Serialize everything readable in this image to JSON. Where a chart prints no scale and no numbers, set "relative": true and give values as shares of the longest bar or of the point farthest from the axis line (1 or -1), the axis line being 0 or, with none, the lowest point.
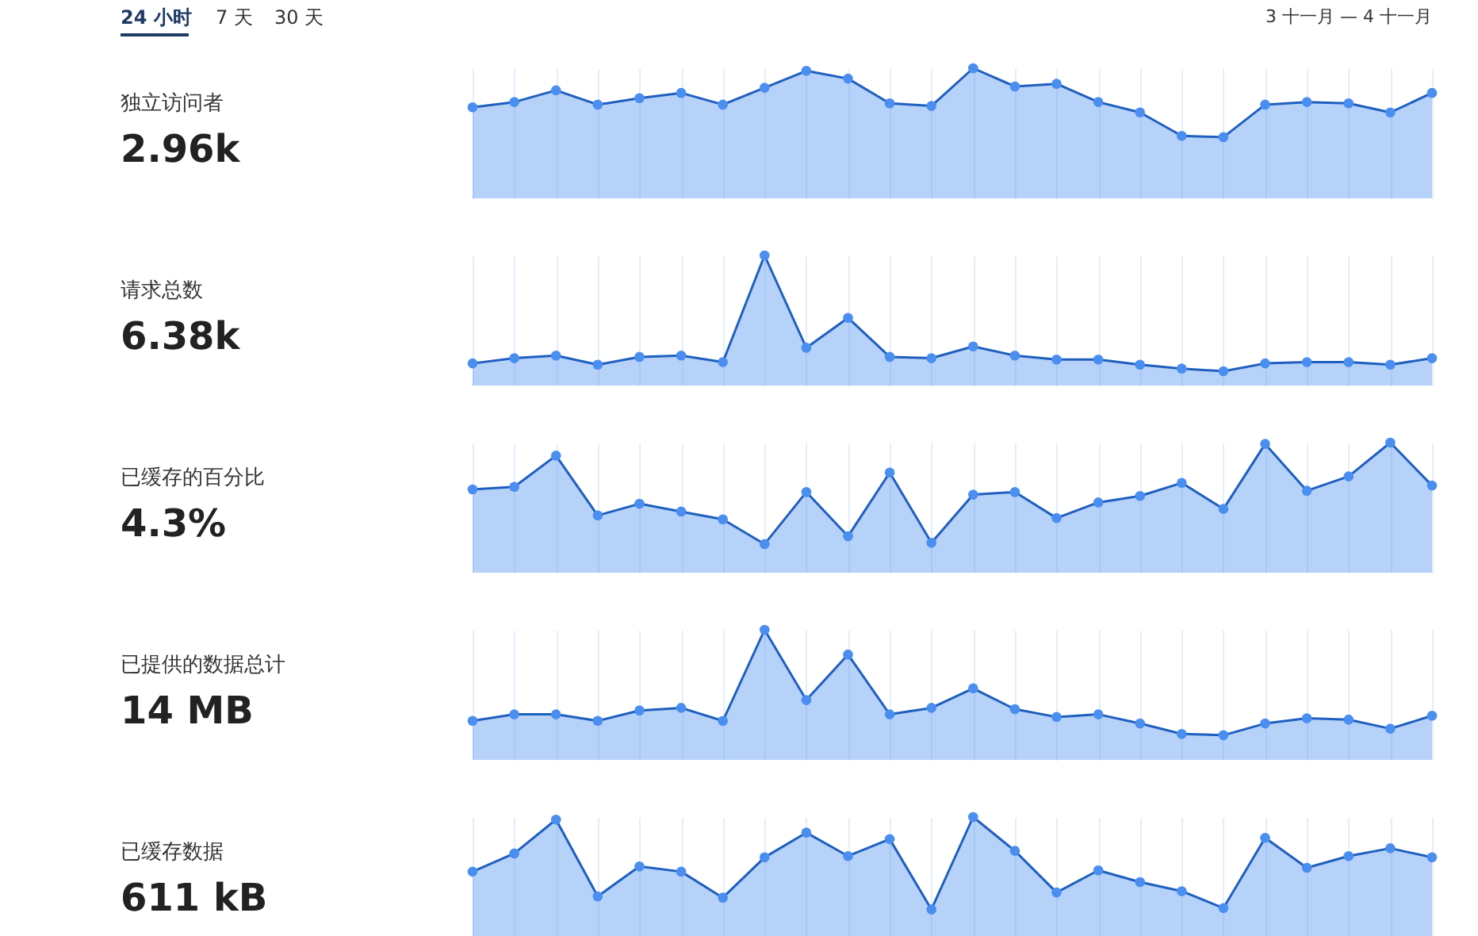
{
  "chart_data": [
    {
      "type": "area",
      "ylabel": "独立访问者",
      "subtitle": "2.96k",
      "annotations": [
        "24 小时",
        "7 天",
        "30 天",
        "3 十一月 — 4 十一月"
      ],
      "relative": true,
      "grid": "x",
      "marker": "circle",
      "categories": [
        null,
        null,
        null,
        null,
        null,
        null,
        null,
        null,
        null,
        null,
        null,
        null,
        null,
        null,
        null,
        null,
        null,
        null,
        null,
        null,
        null,
        null,
        null,
        null
      ],
      "series": [
        {
          "color": "#4a8ff0",
          "values": [
            0.7,
            0.74,
            0.83,
            0.72,
            0.77,
            0.81,
            0.72,
            0.85,
            0.98,
            0.92,
            0.73,
            0.71,
            1.0,
            0.86,
            0.88,
            0.74,
            0.66,
            0.48,
            0.47,
            0.72,
            0.74,
            0.73,
            0.66,
            0.81
          ]
        }
      ]
    },
    {
      "type": "area",
      "ylabel": "请求总数",
      "subtitle": "6.38k",
      "relative": true,
      "grid": "x",
      "marker": "circle",
      "categories": [
        null,
        null,
        null,
        null,
        null,
        null,
        null,
        null,
        null,
        null,
        null,
        null,
        null,
        null,
        null,
        null,
        null,
        null,
        null,
        null,
        null,
        null,
        null,
        null
      ],
      "series": [
        {
          "color": "#4a8ff0",
          "values": [
            0.17,
            0.21,
            0.23,
            0.16,
            0.22,
            0.23,
            0.18,
            1.0,
            0.29,
            0.52,
            0.22,
            0.21,
            0.3,
            0.23,
            0.2,
            0.2,
            0.16,
            0.13,
            0.11,
            0.17,
            0.18,
            0.18,
            0.16,
            0.21
          ]
        }
      ]
    },
    {
      "type": "area",
      "ylabel": "已缓存的百分比",
      "subtitle": "4.3%",
      "relative": true,
      "grid": "x",
      "marker": "circle",
      "categories": [
        null,
        null,
        null,
        null,
        null,
        null,
        null,
        null,
        null,
        null,
        null,
        null,
        null,
        null,
        null,
        null,
        null,
        null,
        null,
        null,
        null,
        null,
        null,
        null
      ],
      "series": [
        {
          "color": "#4a8ff0",
          "values": [
            0.64,
            0.66,
            0.9,
            0.44,
            0.53,
            0.47,
            0.41,
            0.22,
            0.62,
            0.28,
            0.77,
            0.23,
            0.6,
            0.62,
            0.42,
            0.54,
            0.59,
            0.69,
            0.49,
            0.99,
            0.63,
            0.74,
            1.0,
            0.67
          ]
        }
      ]
    },
    {
      "type": "area",
      "ylabel": "已提供的数据总计",
      "subtitle": "14 MB",
      "relative": true,
      "grid": "x",
      "marker": "circle",
      "categories": [
        null,
        null,
        null,
        null,
        null,
        null,
        null,
        null,
        null,
        null,
        null,
        null,
        null,
        null,
        null,
        null,
        null,
        null,
        null,
        null,
        null,
        null,
        null,
        null
      ],
      "series": [
        {
          "color": "#4a8ff0",
          "values": [
            0.3,
            0.35,
            0.35,
            0.3,
            0.38,
            0.4,
            0.3,
            1.0,
            0.46,
            0.81,
            0.35,
            0.4,
            0.55,
            0.39,
            0.33,
            0.35,
            0.28,
            0.2,
            0.19,
            0.28,
            0.32,
            0.31,
            0.24,
            0.34
          ]
        }
      ]
    },
    {
      "type": "area",
      "ylabel": "已缓存数据",
      "subtitle": "611 kB",
      "relative": true,
      "grid": "x",
      "marker": "circle",
      "categories": [
        null,
        null,
        null,
        null,
        null,
        null,
        null,
        null,
        null,
        null,
        null,
        null,
        null,
        null,
        null,
        null,
        null,
        null,
        null,
        null,
        null,
        null,
        null,
        null
      ],
      "series": [
        {
          "color": "#4a8ff0",
          "values": [
            0.58,
            0.72,
            0.98,
            0.39,
            0.62,
            0.58,
            0.38,
            0.69,
            0.88,
            0.7,
            0.83,
            0.29,
            1.0,
            0.74,
            0.42,
            0.59,
            0.5,
            0.43,
            0.3,
            0.84,
            0.61,
            0.7,
            0.76,
            0.69
          ]
        }
      ]
    }
  ]
}
